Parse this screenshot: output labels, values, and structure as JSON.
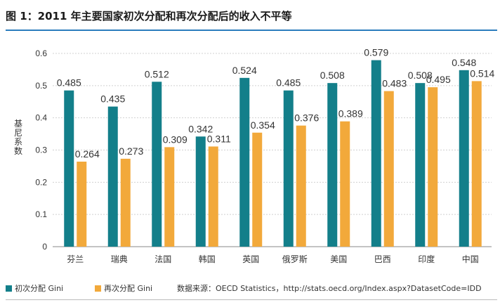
{
  "title": "图 1：2011 年主要国家初次分配和再次分配后的收入不平等",
  "source": "数据来源：OECD Statistics，http://stats.oecd.org/Index.aspx?DatasetCode=IDD",
  "colors": {
    "primary": "#137f8a",
    "secondary": "#f2a93b",
    "title_rule": "#2b7dbd"
  },
  "chart_data": {
    "type": "bar",
    "title": "图 1：2011 年主要国家初次分配和再次分配后的收入不平等",
    "xlabel": "",
    "ylabel": "基尼系数",
    "ylim": [
      0,
      0.6
    ],
    "yticks": [
      "0",
      "0.1",
      "0.2",
      "0.3",
      "0.4",
      "0.5",
      "0.6"
    ],
    "grid": true,
    "legend_position": "bottom-left",
    "categories": [
      "芬兰",
      "瑞典",
      "法国",
      "韩国",
      "英国",
      "俄罗斯",
      "美国",
      "巴西",
      "印度",
      "中国"
    ],
    "series": [
      {
        "name": "初次分配 Gini",
        "values": [
          0.485,
          0.435,
          0.512,
          0.342,
          0.524,
          0.485,
          0.508,
          0.579,
          0.508,
          0.548
        ],
        "labels": [
          "0.485",
          "0.435",
          "0.512",
          "0.342",
          "0.524",
          "0.485",
          "0.508",
          "0.579",
          "0.508",
          "0.548"
        ]
      },
      {
        "name": "再次分配 Gini",
        "values": [
          0.264,
          0.273,
          0.309,
          0.311,
          0.354,
          0.376,
          0.389,
          0.483,
          0.495,
          0.514
        ],
        "labels": [
          "0.264",
          "0.273",
          "0.309",
          "0.311",
          "0.354",
          "0.376",
          "0.389",
          "0.483",
          "0.495",
          "0.514"
        ]
      }
    ]
  }
}
